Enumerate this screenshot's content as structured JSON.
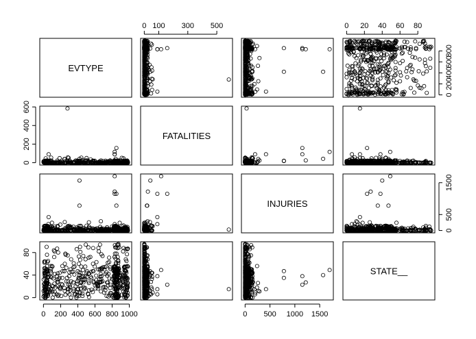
{
  "chart_data": {
    "type": "scatter",
    "kind": "scatterplot-matrix",
    "variables": [
      {
        "name": "EVTYPE",
        "range": [
          0,
          985
        ],
        "ticks": [
          0,
          200,
          400,
          600,
          800,
          1000
        ],
        "tick_labels": [
          "0",
          "200",
          "400",
          "600",
          "800",
          "1000"
        ],
        "top_ticks": [
          0,
          200,
          400,
          600,
          800
        ],
        "top_tick_labels": [
          "0",
          "200",
          "400",
          "600",
          "800"
        ]
      },
      {
        "name": "FATALITIES",
        "range": [
          0,
          583
        ],
        "ticks": [
          0,
          200,
          400,
          600
        ],
        "tick_labels": [
          "0",
          "200",
          "400",
          "600"
        ],
        "top_ticks": [
          0,
          100,
          300,
          500
        ],
        "top_tick_labels": [
          "0",
          "100",
          "300",
          "500"
        ]
      },
      {
        "name": "INJURIES",
        "range": [
          0,
          1700
        ],
        "ticks": [
          0,
          500,
          1000,
          1500
        ],
        "tick_labels": [
          "0",
          "500",
          "1000",
          "1500"
        ],
        "right_ticks": [
          0,
          500,
          1500
        ],
        "right_tick_labels": [
          "0",
          "500",
          "1500"
        ]
      },
      {
        "name": "STATE__",
        "range": [
          0,
          95
        ],
        "ticks": [
          0,
          40,
          80
        ],
        "tick_labels": [
          "0",
          "40",
          "80"
        ],
        "top_ticks": [
          0,
          20,
          40,
          60,
          80
        ],
        "top_tick_labels": [
          "0",
          "20",
          "40",
          "60",
          "80"
        ]
      }
    ],
    "title": "",
    "grid": false,
    "legend": "none",
    "marker": "open-circle",
    "color": "#000000"
  }
}
